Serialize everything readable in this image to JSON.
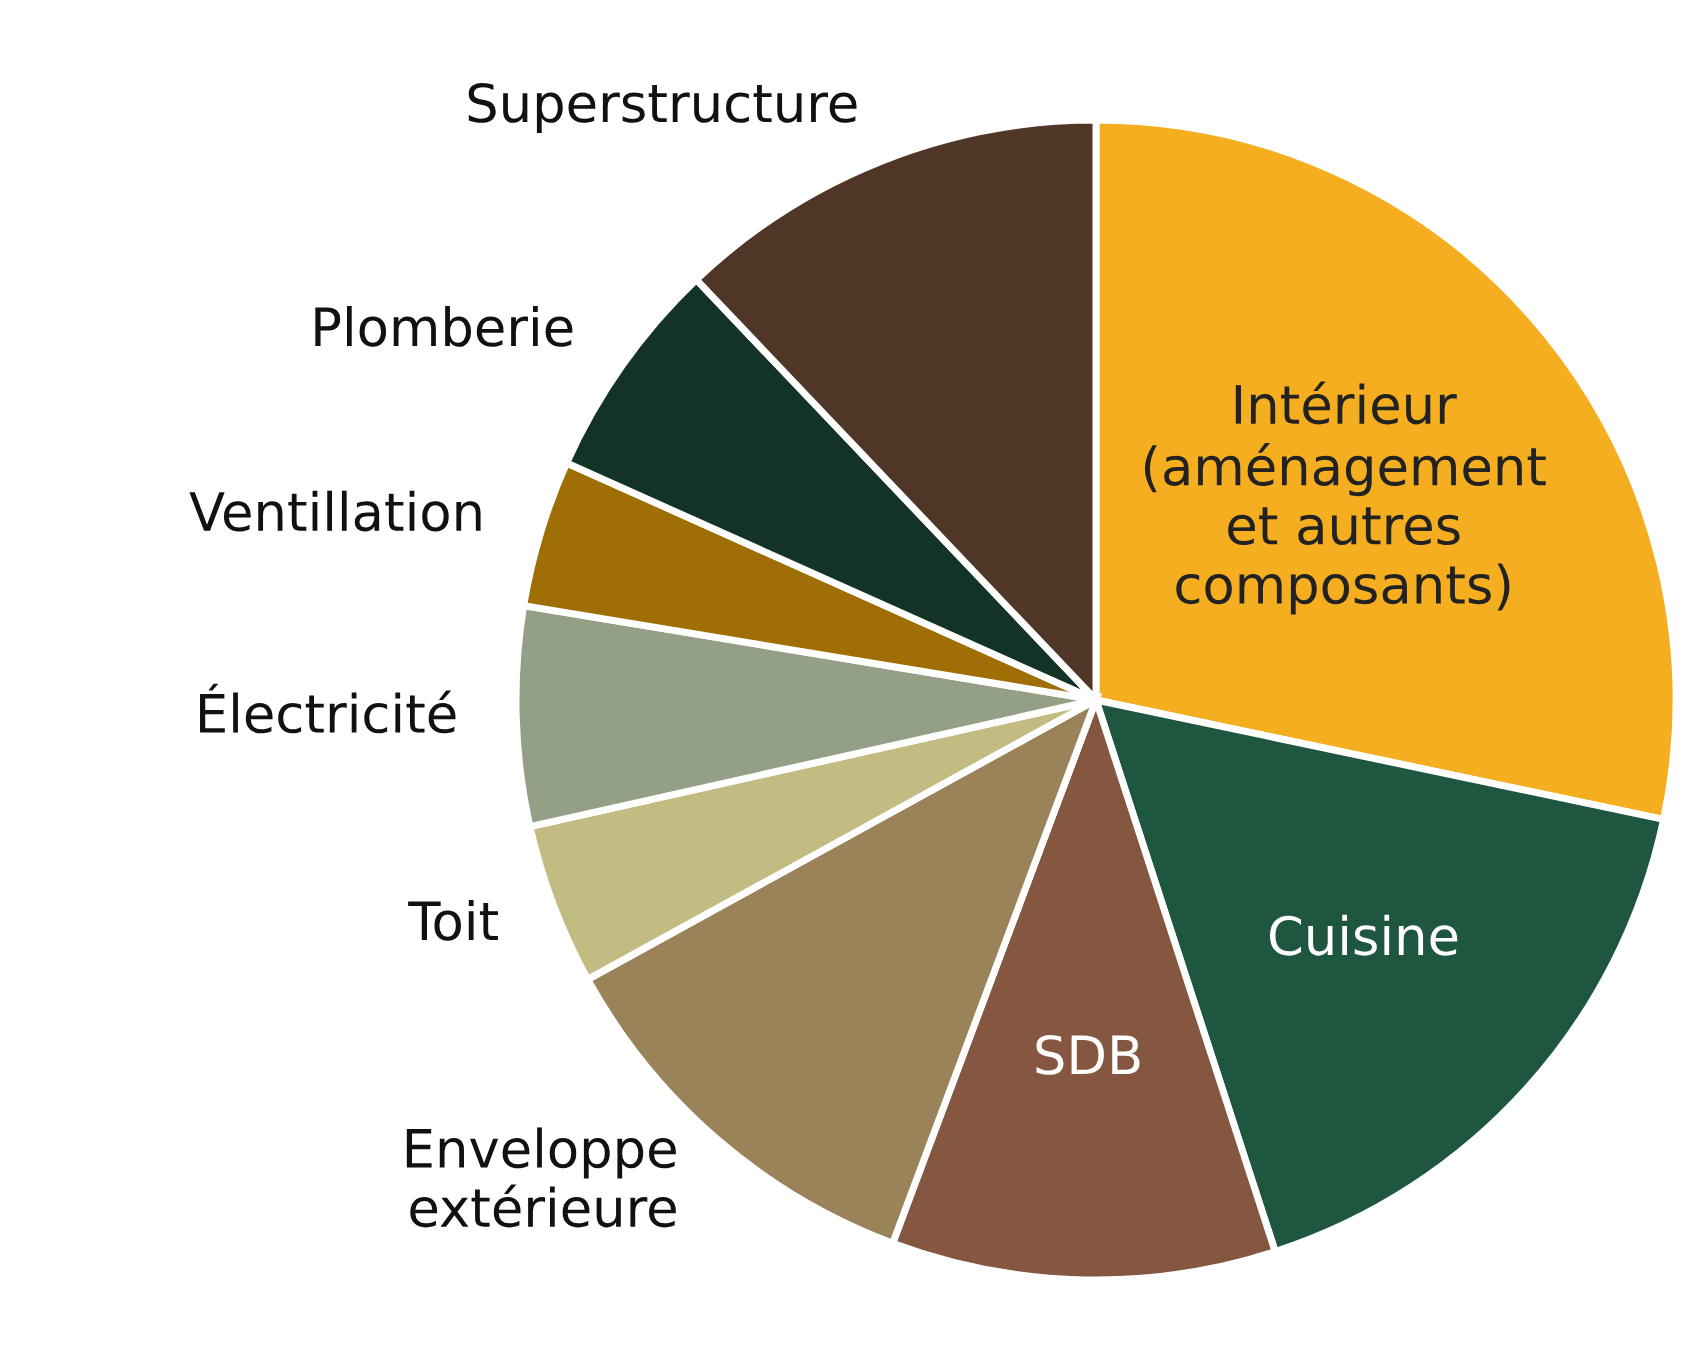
{
  "chart_data": {
    "type": "pie",
    "categories": [
      "Intérieur\n(aménagement\net autres\ncomposants)",
      "Cuisine",
      "SDB",
      "Enveloppe\nextérieure",
      "Toit",
      "Électricité",
      "Ventillation",
      "Plomberie",
      "Superstructure"
    ],
    "values": [
      28.3,
      16.7,
      10.7,
      11.3,
      4.5,
      6.1,
      4.1,
      6.2,
      12.1
    ],
    "colors": [
      "#f5ae1f",
      "#1f5640",
      "#855640",
      "#9a8358",
      "#c2bb82",
      "#93a086",
      "#a06e06",
      "#133326",
      "#4f3627"
    ],
    "legend": false
  }
}
